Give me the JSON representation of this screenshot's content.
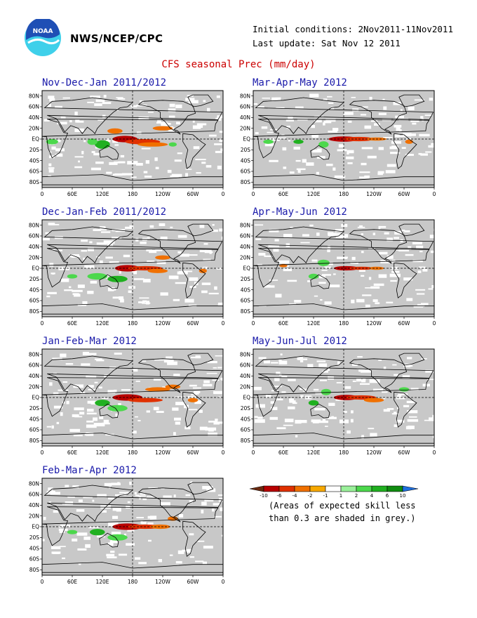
{
  "header": {
    "org": "NWS/NCEP/CPC",
    "initial_conditions": "Initial conditions: 2Nov2011-11Nov2011",
    "last_update": "Last update: Sat Nov 12 2011",
    "title": "CFS seasonal Prec (mm/day)"
  },
  "logo": {
    "icon": "noaa-logo-icon",
    "colors": {
      "blue": "#1f4fb5",
      "cyan": "#3fd0ea"
    }
  },
  "axes": {
    "lat_labels": [
      "80N",
      "60N",
      "40N",
      "20N",
      "EQ",
      "20S",
      "40S",
      "60S",
      "80S"
    ],
    "lon_labels": [
      "0",
      "60E",
      "120E",
      "180",
      "120W",
      "60W",
      "0"
    ]
  },
  "panels": [
    {
      "title": "Nov-Dec-Jan 2011/2012"
    },
    {
      "title": "Mar-Apr-May 2012"
    },
    {
      "title": "Dec-Jan-Feb 2011/2012"
    },
    {
      "title": "Apr-May-Jun 2012"
    },
    {
      "title": "Jan-Feb-Mar 2012"
    },
    {
      "title": "May-Jun-Jul 2012"
    },
    {
      "title": "Feb-Mar-Apr 2012"
    }
  ],
  "legend": {
    "ticks": [
      "-10",
      "-6",
      "-4",
      "-2",
      "-1",
      "1",
      "2",
      "4",
      "6",
      "10"
    ],
    "colors": [
      "#6b2a10",
      "#b80000",
      "#e03000",
      "#f07000",
      "#f7a800",
      "#ffffff",
      "#9af09a",
      "#4cd84c",
      "#20b020",
      "#108c10",
      "#1e6fe0"
    ],
    "note_line1": "(Areas of expected skill less",
    "note_line2": "than 0.3 are shaded in grey.)"
  },
  "colors": {
    "skill_grey": "#c8c8c8",
    "title_blue": "#1a1aaa",
    "title_red": "#cc0000"
  }
}
